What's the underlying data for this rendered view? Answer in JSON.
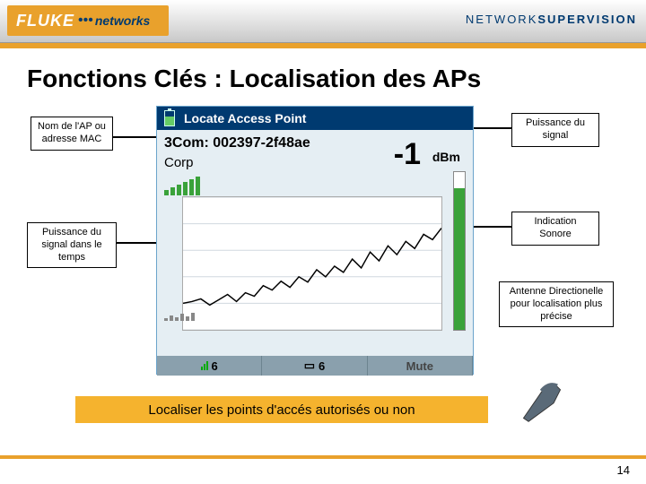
{
  "brand": {
    "name1": "FLUKE",
    "name2": "networks",
    "supervision_left": "NETWORK",
    "supervision_right": "SUPERVISION"
  },
  "title": "Fonctions Clés : Localisation des APs",
  "callouts": {
    "apname": "Nom de l'AP ou adresse MAC",
    "signal": "Puissance du signal",
    "history": "Puissance du signal dans le temps",
    "sound": "Indication Sonore",
    "antenna": "Antenne Directionelle pour localisation plus précise"
  },
  "device": {
    "header": "Locate Access Point",
    "ap_line": "3Com: 002397-2f48ae",
    "corp": "Corp",
    "dbm_value": "-1",
    "dbm_unit": "dBm",
    "signal_bars": [
      6,
      9,
      12,
      15,
      18,
      21
    ],
    "history_bars": [
      3,
      6,
      4,
      8,
      5,
      9
    ],
    "vmeter_pct": 90,
    "chart": {
      "grid_color": "#d0d8df",
      "line_color": "#000",
      "bg": "#fff",
      "points": [
        0,
        120,
        10,
        118,
        20,
        115,
        30,
        122,
        40,
        116,
        50,
        110,
        60,
        118,
        70,
        108,
        80,
        112,
        90,
        100,
        100,
        105,
        110,
        95,
        120,
        102,
        130,
        90,
        140,
        96,
        150,
        82,
        160,
        90,
        170,
        78,
        180,
        85,
        190,
        70,
        200,
        80,
        210,
        62,
        220,
        72,
        230,
        55,
        240,
        65,
        250,
        50,
        260,
        58,
        270,
        42,
        280,
        48,
        290,
        35
      ]
    },
    "footer": {
      "seg1": "6",
      "seg2": "6",
      "seg3": "Mute"
    }
  },
  "caption": "Localiser les points d'accés autorisés ou non",
  "page": "14",
  "colors": {
    "accent": "#e9a12c",
    "navy": "#003a70"
  }
}
